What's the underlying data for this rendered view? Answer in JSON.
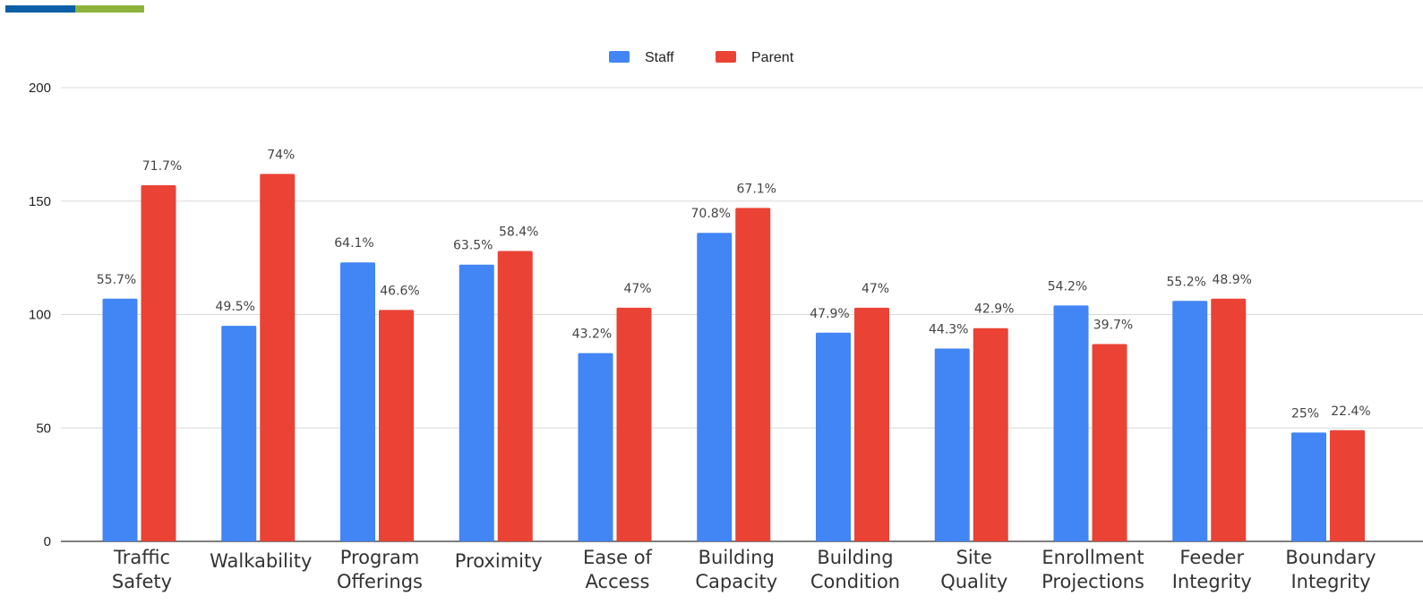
{
  "colors": {
    "accent_left": "#0a5fa8",
    "accent_right": "#8db33a",
    "grid": "#d9d9d9",
    "baseline": "#333333"
  },
  "chart_data": {
    "type": "bar",
    "categories": [
      [
        "Traffic",
        "Safety"
      ],
      [
        "Walkability"
      ],
      [
        "Program",
        "Offerings"
      ],
      [
        "Proximity"
      ],
      [
        "Ease of",
        "Access"
      ],
      [
        "Building",
        "Capacity"
      ],
      [
        "Building",
        "Condition"
      ],
      [
        "Site",
        "Quality"
      ],
      [
        "Enrollment",
        "Projections"
      ],
      [
        "Feeder",
        "Integrity"
      ],
      [
        "Boundary",
        "Integrity"
      ]
    ],
    "series": [
      {
        "name": "Staff",
        "color": "#4285f4",
        "values": [
          107,
          95,
          123,
          122,
          83,
          136,
          92,
          85,
          104,
          106,
          48
        ],
        "labels": [
          "55.7%",
          "49.5%",
          "64.1%",
          "63.5%",
          "43.2%",
          "70.8%",
          "47.9%",
          "44.3%",
          "54.2%",
          "55.2%",
          "25%"
        ]
      },
      {
        "name": "Parent",
        "color": "#ea4335",
        "values": [
          157,
          162,
          102,
          128,
          103,
          147,
          103,
          94,
          87,
          107,
          49
        ],
        "labels": [
          "71.7%",
          "74%",
          "46.6%",
          "58.4%",
          "47%",
          "67.1%",
          "47%",
          "42.9%",
          "39.7%",
          "48.9%",
          "22.4%"
        ]
      }
    ],
    "yticks": [
      0,
      50,
      100,
      150,
      200
    ],
    "ylim": [
      0,
      200
    ],
    "grid": true,
    "legend_position": "top-center",
    "title": "",
    "xlabel": "",
    "ylabel": ""
  }
}
